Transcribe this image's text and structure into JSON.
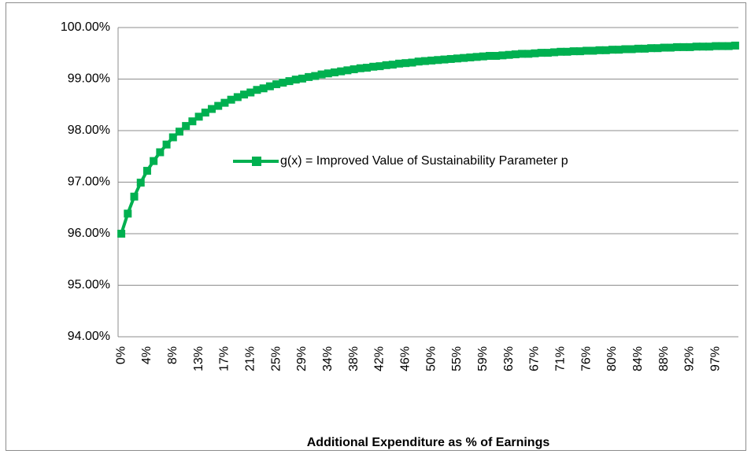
{
  "chart_data": {
    "type": "line",
    "x_label": "Additional Expenditure as % of Earnings",
    "categories": [
      "0%",
      null,
      null,
      null,
      "4%",
      null,
      null,
      null,
      "8%",
      null,
      null,
      null,
      "13%",
      null,
      null,
      null,
      "17%",
      null,
      null,
      null,
      "21%",
      null,
      null,
      null,
      "25%",
      null,
      null,
      null,
      "29%",
      null,
      null,
      null,
      "34%",
      null,
      null,
      null,
      "38%",
      null,
      null,
      null,
      "42%",
      null,
      null,
      null,
      "46%",
      null,
      null,
      null,
      "50%",
      null,
      null,
      null,
      "55%",
      null,
      null,
      null,
      "59%",
      null,
      null,
      null,
      "63%",
      null,
      null,
      null,
      "67%",
      null,
      null,
      null,
      "71%",
      null,
      null,
      null,
      "76%",
      null,
      null,
      null,
      "80%",
      null,
      null,
      null,
      "84%",
      null,
      null,
      null,
      "88%",
      null,
      null,
      null,
      "92%",
      null,
      null,
      null,
      "97%",
      null,
      null,
      null
    ],
    "series": [
      {
        "name": "g(x) = Improved Value of Sustainability Parameter p",
        "color": "#00b050",
        "values": [
          96.0,
          96.39,
          96.72,
          96.99,
          97.22,
          97.41,
          97.58,
          97.73,
          97.87,
          97.98,
          98.09,
          98.18,
          98.27,
          98.35,
          98.42,
          98.48,
          98.54,
          98.6,
          98.65,
          98.7,
          98.74,
          98.79,
          98.82,
          98.86,
          98.9,
          98.93,
          98.96,
          98.99,
          99.01,
          99.04,
          99.06,
          99.09,
          99.11,
          99.13,
          99.15,
          99.17,
          99.19,
          99.21,
          99.22,
          99.24,
          99.25,
          99.27,
          99.28,
          99.3,
          99.31,
          99.32,
          99.34,
          99.35,
          99.36,
          99.37,
          99.38,
          99.39,
          99.4,
          99.41,
          99.42,
          99.43,
          99.44,
          99.45,
          99.45,
          99.46,
          99.47,
          99.48,
          99.49,
          99.49,
          99.5,
          99.51,
          99.51,
          99.52,
          99.53,
          99.53,
          99.54,
          99.54,
          99.55,
          99.55,
          99.56,
          99.56,
          99.57,
          99.57,
          99.58,
          99.58,
          99.59,
          99.59,
          99.6,
          99.6,
          99.61,
          99.61,
          99.62,
          99.62,
          99.62,
          99.63,
          99.63,
          99.63,
          99.64,
          99.64,
          99.64,
          99.65
        ]
      }
    ],
    "ylim": [
      94,
      100
    ],
    "yticks": [
      {
        "value": 94,
        "label": "94.00%"
      },
      {
        "value": 95,
        "label": "95.00%"
      },
      {
        "value": 96,
        "label": "96.00%"
      },
      {
        "value": 97,
        "label": "97.00%"
      },
      {
        "value": 98,
        "label": "98.00%"
      },
      {
        "value": 99,
        "label": "99.00%"
      },
      {
        "value": 100,
        "label": "100.00%"
      }
    ],
    "grid": true,
    "legend": "inside-right"
  }
}
